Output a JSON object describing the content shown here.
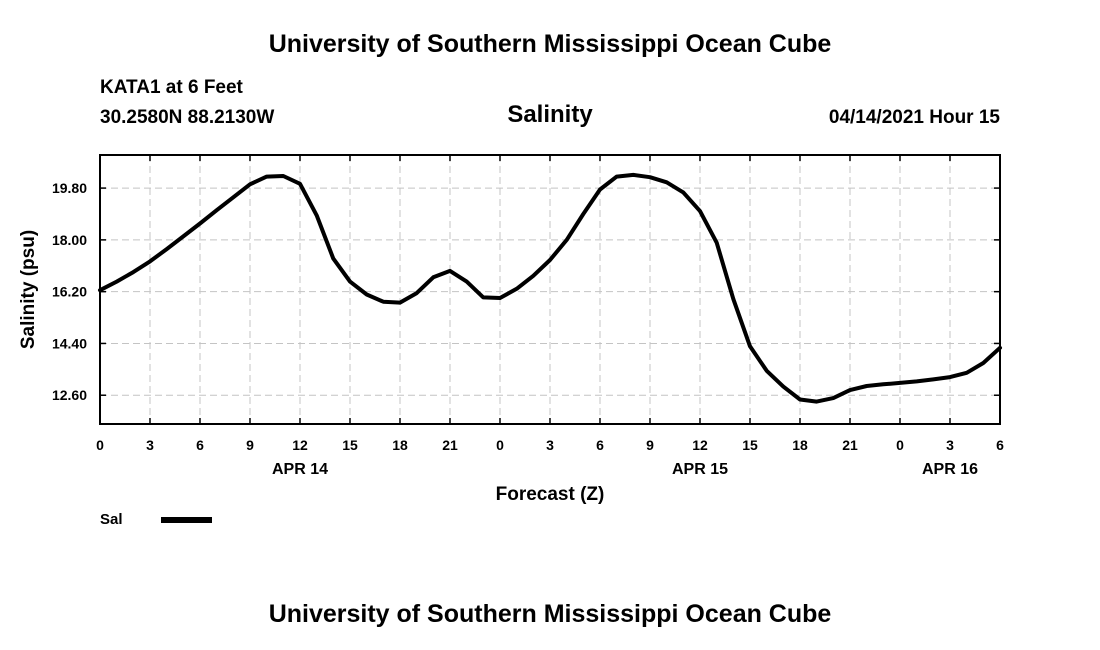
{
  "header": {
    "title": "University of Southern Mississippi Ocean Cube",
    "station": "KATA1 at 6 Feet",
    "coords": "30.2580N  88.2130W",
    "chart_title": "Salinity",
    "run_time": "04/14/2021 Hour 15"
  },
  "footer": {
    "title": "University of Southern Mississippi Ocean Cube"
  },
  "legend": {
    "label": "Sal",
    "color": "#000000"
  },
  "chart_data": {
    "type": "line",
    "title": "Salinity",
    "xlabel": "Forecast (Z)",
    "ylabel": "Salinity (psu)",
    "x_ticks": [
      "0",
      "3",
      "6",
      "9",
      "12",
      "15",
      "18",
      "21",
      "0",
      "3",
      "6",
      "9",
      "12",
      "15",
      "18",
      "21",
      "0",
      "3",
      "6"
    ],
    "date_labels": [
      {
        "label": "APR 14",
        "at_hour": 12
      },
      {
        "label": "APR 15",
        "at_hour": 36
      },
      {
        "label": "APR 16",
        "at_hour": 51
      }
    ],
    "xlim": [
      0,
      54
    ],
    "y_ticks": [
      "12.60",
      "14.40",
      "16.20",
      "18.00",
      "19.80"
    ],
    "ylim": [
      11.6,
      20.95
    ],
    "grid": true,
    "legend_position": "bottom-left",
    "series": [
      {
        "name": "Sal",
        "color": "#000000",
        "x": [
          0,
          1,
          2,
          3,
          4,
          5,
          6,
          7,
          8,
          9,
          10,
          11,
          12,
          13,
          14,
          15,
          16,
          17,
          18,
          19,
          20,
          21,
          22,
          23,
          24,
          25,
          26,
          27,
          28,
          29,
          30,
          31,
          32,
          33,
          34,
          35,
          36,
          37,
          38,
          39,
          40,
          41,
          42,
          43,
          44,
          45,
          46,
          47,
          48,
          49,
          50,
          51,
          52,
          53,
          54
        ],
        "y": [
          16.25,
          16.55,
          16.88,
          17.25,
          17.68,
          18.12,
          18.57,
          19.03,
          19.48,
          19.93,
          20.2,
          20.22,
          19.95,
          18.85,
          17.35,
          16.55,
          16.1,
          15.85,
          15.82,
          16.15,
          16.7,
          16.92,
          16.55,
          16.0,
          15.98,
          16.3,
          16.75,
          17.3,
          18.0,
          18.9,
          19.75,
          20.2,
          20.26,
          20.18,
          20.0,
          19.65,
          19.0,
          17.9,
          15.95,
          14.3,
          13.45,
          12.9,
          12.45,
          12.38,
          12.5,
          12.78,
          12.92,
          12.98,
          13.03,
          13.08,
          13.15,
          13.23,
          13.38,
          13.72,
          14.25
        ]
      }
    ]
  }
}
